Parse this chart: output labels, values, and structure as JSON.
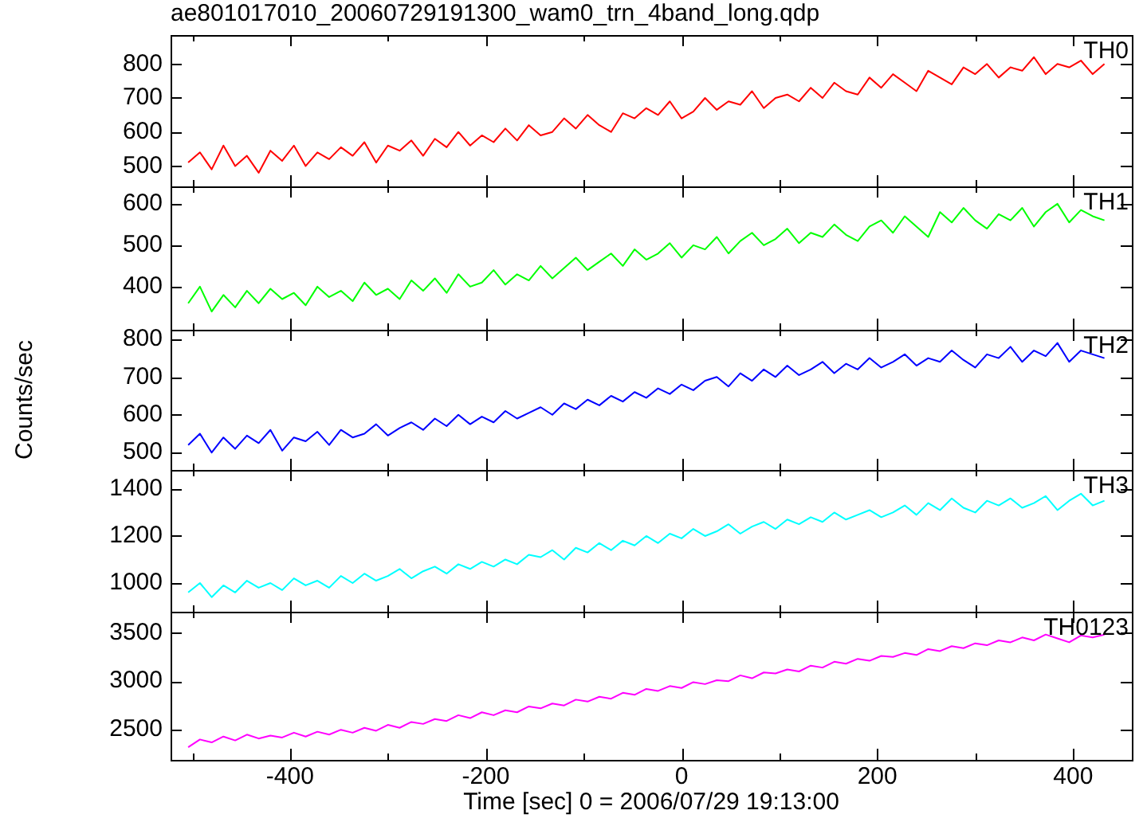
{
  "chart_data": [
    {
      "type": "line",
      "title": "ae801017010_20060729191300_wam0_trn_4band_long.qdp",
      "x": [
        -504,
        -492,
        -480,
        -468,
        -456,
        -444,
        -432,
        -420,
        -408,
        -396,
        -384,
        -372,
        -360,
        -348,
        -336,
        -324,
        -312,
        -300,
        -288,
        -276,
        -264,
        -252,
        -240,
        -228,
        -216,
        -204,
        -192,
        -180,
        -168,
        -156,
        -144,
        -132,
        -120,
        -108,
        -96,
        -84,
        -72,
        -60,
        -48,
        -36,
        -24,
        -12,
        0,
        12,
        24,
        36,
        48,
        60,
        72,
        84,
        96,
        108,
        120,
        132,
        144,
        156,
        168,
        180,
        192,
        204,
        216,
        228,
        240,
        252,
        264,
        276,
        288,
        300,
        312,
        324,
        336,
        348,
        360,
        372,
        384,
        396,
        408,
        420,
        432
      ],
      "series": [
        {
          "name": "TH0",
          "color": "#ff0000",
          "values": [
            510,
            540,
            490,
            560,
            500,
            530,
            480,
            545,
            515,
            560,
            500,
            540,
            520,
            555,
            530,
            570,
            510,
            560,
            545,
            575,
            530,
            580,
            555,
            600,
            560,
            590,
            570,
            610,
            575,
            620,
            590,
            600,
            640,
            610,
            650,
            620,
            600,
            655,
            640,
            670,
            650,
            690,
            640,
            660,
            700,
            665,
            690,
            680,
            720,
            670,
            700,
            710,
            690,
            730,
            700,
            745,
            720,
            710,
            760,
            730,
            770,
            745,
            720,
            780,
            760,
            740,
            790,
            770,
            800,
            760,
            790,
            780,
            820,
            770,
            800,
            790,
            810,
            770,
            800
          ]
        }
      ],
      "xlim": [
        -522,
        460
      ],
      "xticks": [
        {
          "value": -500,
          "label": null
        },
        -400,
        {
          "value": -300,
          "label": null
        },
        -200,
        {
          "value": -100,
          "label": null
        },
        0,
        {
          "value": 100,
          "label": null
        },
        200,
        {
          "value": 300,
          "label": null
        },
        400
      ],
      "ylim": [
        440,
        885
      ],
      "yticks": [
        500,
        600,
        700,
        800
      ],
      "tick_labels": "y",
      "marker": "none"
    },
    {
      "type": "line",
      "x": [
        -504,
        -492,
        -480,
        -468,
        -456,
        -444,
        -432,
        -420,
        -408,
        -396,
        -384,
        -372,
        -360,
        -348,
        -336,
        -324,
        -312,
        -300,
        -288,
        -276,
        -264,
        -252,
        -240,
        -228,
        -216,
        -204,
        -192,
        -180,
        -168,
        -156,
        -144,
        -132,
        -120,
        -108,
        -96,
        -84,
        -72,
        -60,
        -48,
        -36,
        -24,
        -12,
        0,
        12,
        24,
        36,
        48,
        60,
        72,
        84,
        96,
        108,
        120,
        132,
        144,
        156,
        168,
        180,
        192,
        204,
        216,
        228,
        240,
        252,
        264,
        276,
        288,
        300,
        312,
        324,
        336,
        348,
        360,
        372,
        384,
        396,
        408,
        420,
        432
      ],
      "series": [
        {
          "name": "TH1",
          "color": "#00ff00",
          "values": [
            360,
            400,
            340,
            380,
            350,
            390,
            360,
            395,
            370,
            385,
            355,
            400,
            375,
            390,
            365,
            410,
            380,
            395,
            370,
            415,
            390,
            420,
            385,
            430,
            400,
            410,
            440,
            405,
            430,
            415,
            450,
            420,
            445,
            470,
            440,
            460,
            480,
            450,
            490,
            465,
            480,
            505,
            470,
            500,
            490,
            520,
            480,
            510,
            530,
            500,
            515,
            540,
            505,
            530,
            520,
            550,
            525,
            510,
            545,
            560,
            530,
            570,
            545,
            520,
            580,
            555,
            590,
            560,
            540,
            575,
            560,
            590,
            545,
            580,
            600,
            555,
            585,
            570,
            560
          ]
        }
      ],
      "xlim": [
        -522,
        460
      ],
      "xticks": [
        {
          "value": -500,
          "label": null
        },
        -400,
        {
          "value": -300,
          "label": null
        },
        -200,
        {
          "value": -100,
          "label": null
        },
        0,
        {
          "value": 100,
          "label": null
        },
        200,
        {
          "value": 300,
          "label": null
        },
        400
      ],
      "ylim": [
        296,
        642
      ],
      "yticks": [
        400,
        500,
        600
      ],
      "tick_labels": "y",
      "marker": "none"
    },
    {
      "type": "line",
      "ylabel": "Counts/sec",
      "x": [
        -504,
        -492,
        -480,
        -468,
        -456,
        -444,
        -432,
        -420,
        -408,
        -396,
        -384,
        -372,
        -360,
        -348,
        -336,
        -324,
        -312,
        -300,
        -288,
        -276,
        -264,
        -252,
        -240,
        -228,
        -216,
        -204,
        -192,
        -180,
        -168,
        -156,
        -144,
        -132,
        -120,
        -108,
        -96,
        -84,
        -72,
        -60,
        -48,
        -36,
        -24,
        -12,
        0,
        12,
        24,
        36,
        48,
        60,
        72,
        84,
        96,
        108,
        120,
        132,
        144,
        156,
        168,
        180,
        192,
        204,
        216,
        228,
        240,
        252,
        264,
        276,
        288,
        300,
        312,
        324,
        336,
        348,
        360,
        372,
        384,
        396,
        408,
        420,
        432
      ],
      "series": [
        {
          "name": "TH2",
          "color": "#0000ff",
          "values": [
            520,
            550,
            500,
            540,
            510,
            545,
            525,
            560,
            505,
            540,
            530,
            555,
            520,
            560,
            540,
            550,
            575,
            545,
            565,
            580,
            560,
            590,
            570,
            600,
            575,
            595,
            580,
            610,
            590,
            605,
            620,
            600,
            630,
            615,
            640,
            625,
            650,
            635,
            660,
            645,
            670,
            655,
            680,
            665,
            690,
            700,
            675,
            710,
            690,
            720,
            700,
            730,
            705,
            720,
            740,
            710,
            735,
            720,
            750,
            725,
            740,
            760,
            730,
            750,
            740,
            770,
            745,
            725,
            760,
            750,
            780,
            740,
            770,
            755,
            790,
            740,
            770,
            760,
            750
          ]
        }
      ],
      "xlim": [
        -522,
        460
      ],
      "xticks": [
        {
          "value": -500,
          "label": null
        },
        -400,
        {
          "value": -300,
          "label": null
        },
        -200,
        {
          "value": -100,
          "label": null
        },
        0,
        {
          "value": 100,
          "label": null
        },
        200,
        {
          "value": 300,
          "label": null
        },
        400
      ],
      "ylim": [
        454,
        825
      ],
      "yticks": [
        500,
        600,
        700,
        800
      ],
      "tick_labels": "y",
      "marker": "none"
    },
    {
      "type": "line",
      "x": [
        -504,
        -492,
        -480,
        -468,
        -456,
        -444,
        -432,
        -420,
        -408,
        -396,
        -384,
        -372,
        -360,
        -348,
        -336,
        -324,
        -312,
        -300,
        -288,
        -276,
        -264,
        -252,
        -240,
        -228,
        -216,
        -204,
        -192,
        -180,
        -168,
        -156,
        -144,
        -132,
        -120,
        -108,
        -96,
        -84,
        -72,
        -60,
        -48,
        -36,
        -24,
        -12,
        0,
        12,
        24,
        36,
        48,
        60,
        72,
        84,
        96,
        108,
        120,
        132,
        144,
        156,
        168,
        180,
        192,
        204,
        216,
        228,
        240,
        252,
        264,
        276,
        288,
        300,
        312,
        324,
        336,
        348,
        360,
        372,
        384,
        396,
        408,
        420,
        432
      ],
      "series": [
        {
          "name": "TH3",
          "color": "#00ffff",
          "values": [
            960,
            1000,
            940,
            990,
            960,
            1010,
            980,
            1000,
            970,
            1020,
            990,
            1010,
            980,
            1030,
            1000,
            1040,
            1010,
            1030,
            1060,
            1020,
            1050,
            1070,
            1040,
            1080,
            1060,
            1090,
            1070,
            1100,
            1080,
            1120,
            1110,
            1140,
            1100,
            1150,
            1130,
            1170,
            1140,
            1180,
            1160,
            1200,
            1170,
            1210,
            1190,
            1230,
            1200,
            1220,
            1250,
            1210,
            1240,
            1260,
            1230,
            1270,
            1250,
            1280,
            1260,
            1300,
            1270,
            1290,
            1310,
            1280,
            1300,
            1330,
            1290,
            1340,
            1310,
            1360,
            1320,
            1300,
            1350,
            1330,
            1360,
            1320,
            1340,
            1370,
            1310,
            1350,
            1380,
            1330,
            1350
          ]
        }
      ],
      "xlim": [
        -522,
        460
      ],
      "xticks": [
        {
          "value": -500,
          "label": null
        },
        -400,
        {
          "value": -300,
          "label": null
        },
        -200,
        {
          "value": -100,
          "label": null
        },
        0,
        {
          "value": 100,
          "label": null
        },
        200,
        {
          "value": 300,
          "label": null
        },
        400
      ],
      "ylim": [
        878,
        1481
      ],
      "yticks": [
        1000,
        1200,
        1400
      ],
      "tick_labels": "y",
      "marker": "none"
    },
    {
      "type": "line",
      "xlabel": "Time [sec] 0 = 2006/07/29 19:13:00",
      "x": [
        -504,
        -492,
        -480,
        -468,
        -456,
        -444,
        -432,
        -420,
        -408,
        -396,
        -384,
        -372,
        -360,
        -348,
        -336,
        -324,
        -312,
        -300,
        -288,
        -276,
        -264,
        -252,
        -240,
        -228,
        -216,
        -204,
        -192,
        -180,
        -168,
        -156,
        -144,
        -132,
        -120,
        -108,
        -96,
        -84,
        -72,
        -60,
        -48,
        -36,
        -24,
        -12,
        0,
        12,
        24,
        36,
        48,
        60,
        72,
        84,
        96,
        108,
        120,
        132,
        144,
        156,
        168,
        180,
        192,
        204,
        216,
        228,
        240,
        252,
        264,
        276,
        288,
        300,
        312,
        324,
        336,
        348,
        360,
        372,
        384,
        396,
        408,
        420,
        432
      ],
      "series": [
        {
          "name": "TH0123",
          "color": "#ff00ff",
          "values": [
            2320,
            2400,
            2370,
            2430,
            2390,
            2450,
            2410,
            2440,
            2420,
            2470,
            2430,
            2480,
            2450,
            2500,
            2470,
            2520,
            2490,
            2550,
            2520,
            2580,
            2560,
            2610,
            2590,
            2650,
            2620,
            2680,
            2650,
            2700,
            2680,
            2740,
            2720,
            2770,
            2750,
            2810,
            2790,
            2840,
            2820,
            2880,
            2860,
            2920,
            2900,
            2950,
            2930,
            2990,
            2970,
            3010,
            3000,
            3060,
            3030,
            3090,
            3080,
            3120,
            3100,
            3160,
            3140,
            3200,
            3180,
            3230,
            3210,
            3260,
            3250,
            3290,
            3270,
            3330,
            3310,
            3360,
            3340,
            3390,
            3370,
            3420,
            3400,
            3450,
            3420,
            3480,
            3440,
            3400,
            3470,
            3450,
            3480
          ]
        }
      ],
      "xlim": [
        -522,
        460
      ],
      "xticks": [
        {
          "value": -500,
          "label": null
        },
        -400,
        {
          "value": -300,
          "label": null
        },
        -200,
        {
          "value": -100,
          "label": null
        },
        0,
        {
          "value": 100,
          "label": null
        },
        200,
        {
          "value": 300,
          "label": null
        },
        400
      ],
      "ylim": [
        2190,
        3715
      ],
      "yticks": [
        2500,
        3000,
        3500
      ],
      "marker": "none"
    }
  ]
}
